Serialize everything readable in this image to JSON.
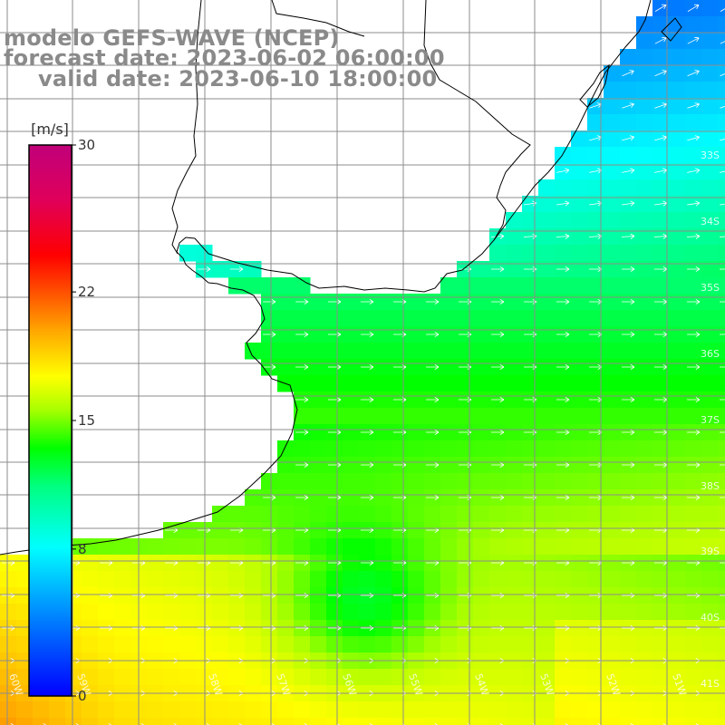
{
  "header": {
    "title": "modelo GEFS-WAVE (NCEP)",
    "forecast_line": "forecast date: 2023-06-02 06:00:00",
    "valid_line": "valid date: 2023-06-10 18:00:00"
  },
  "legend": {
    "unit": "[m/s]",
    "ticks": [
      "30",
      "22",
      "15",
      "8",
      "0"
    ],
    "tick_values": [
      30,
      22,
      15,
      8,
      0
    ],
    "range": [
      0,
      30
    ]
  },
  "map": {
    "lon_labels": [
      "60W",
      "59W",
      "58W",
      "57W",
      "56W",
      "55W",
      "54W",
      "53W",
      "52W",
      "51W"
    ],
    "lat_labels": [
      "33S",
      "34S",
      "35S",
      "36S",
      "37S",
      "38S",
      "39S",
      "40S",
      "41S"
    ]
  },
  "colors": {
    "coastline": "#000000",
    "grid": "#8c8c8c",
    "land": "#ffffff",
    "title_text": "#8a8a8a",
    "arrows": "#ffffff"
  }
}
